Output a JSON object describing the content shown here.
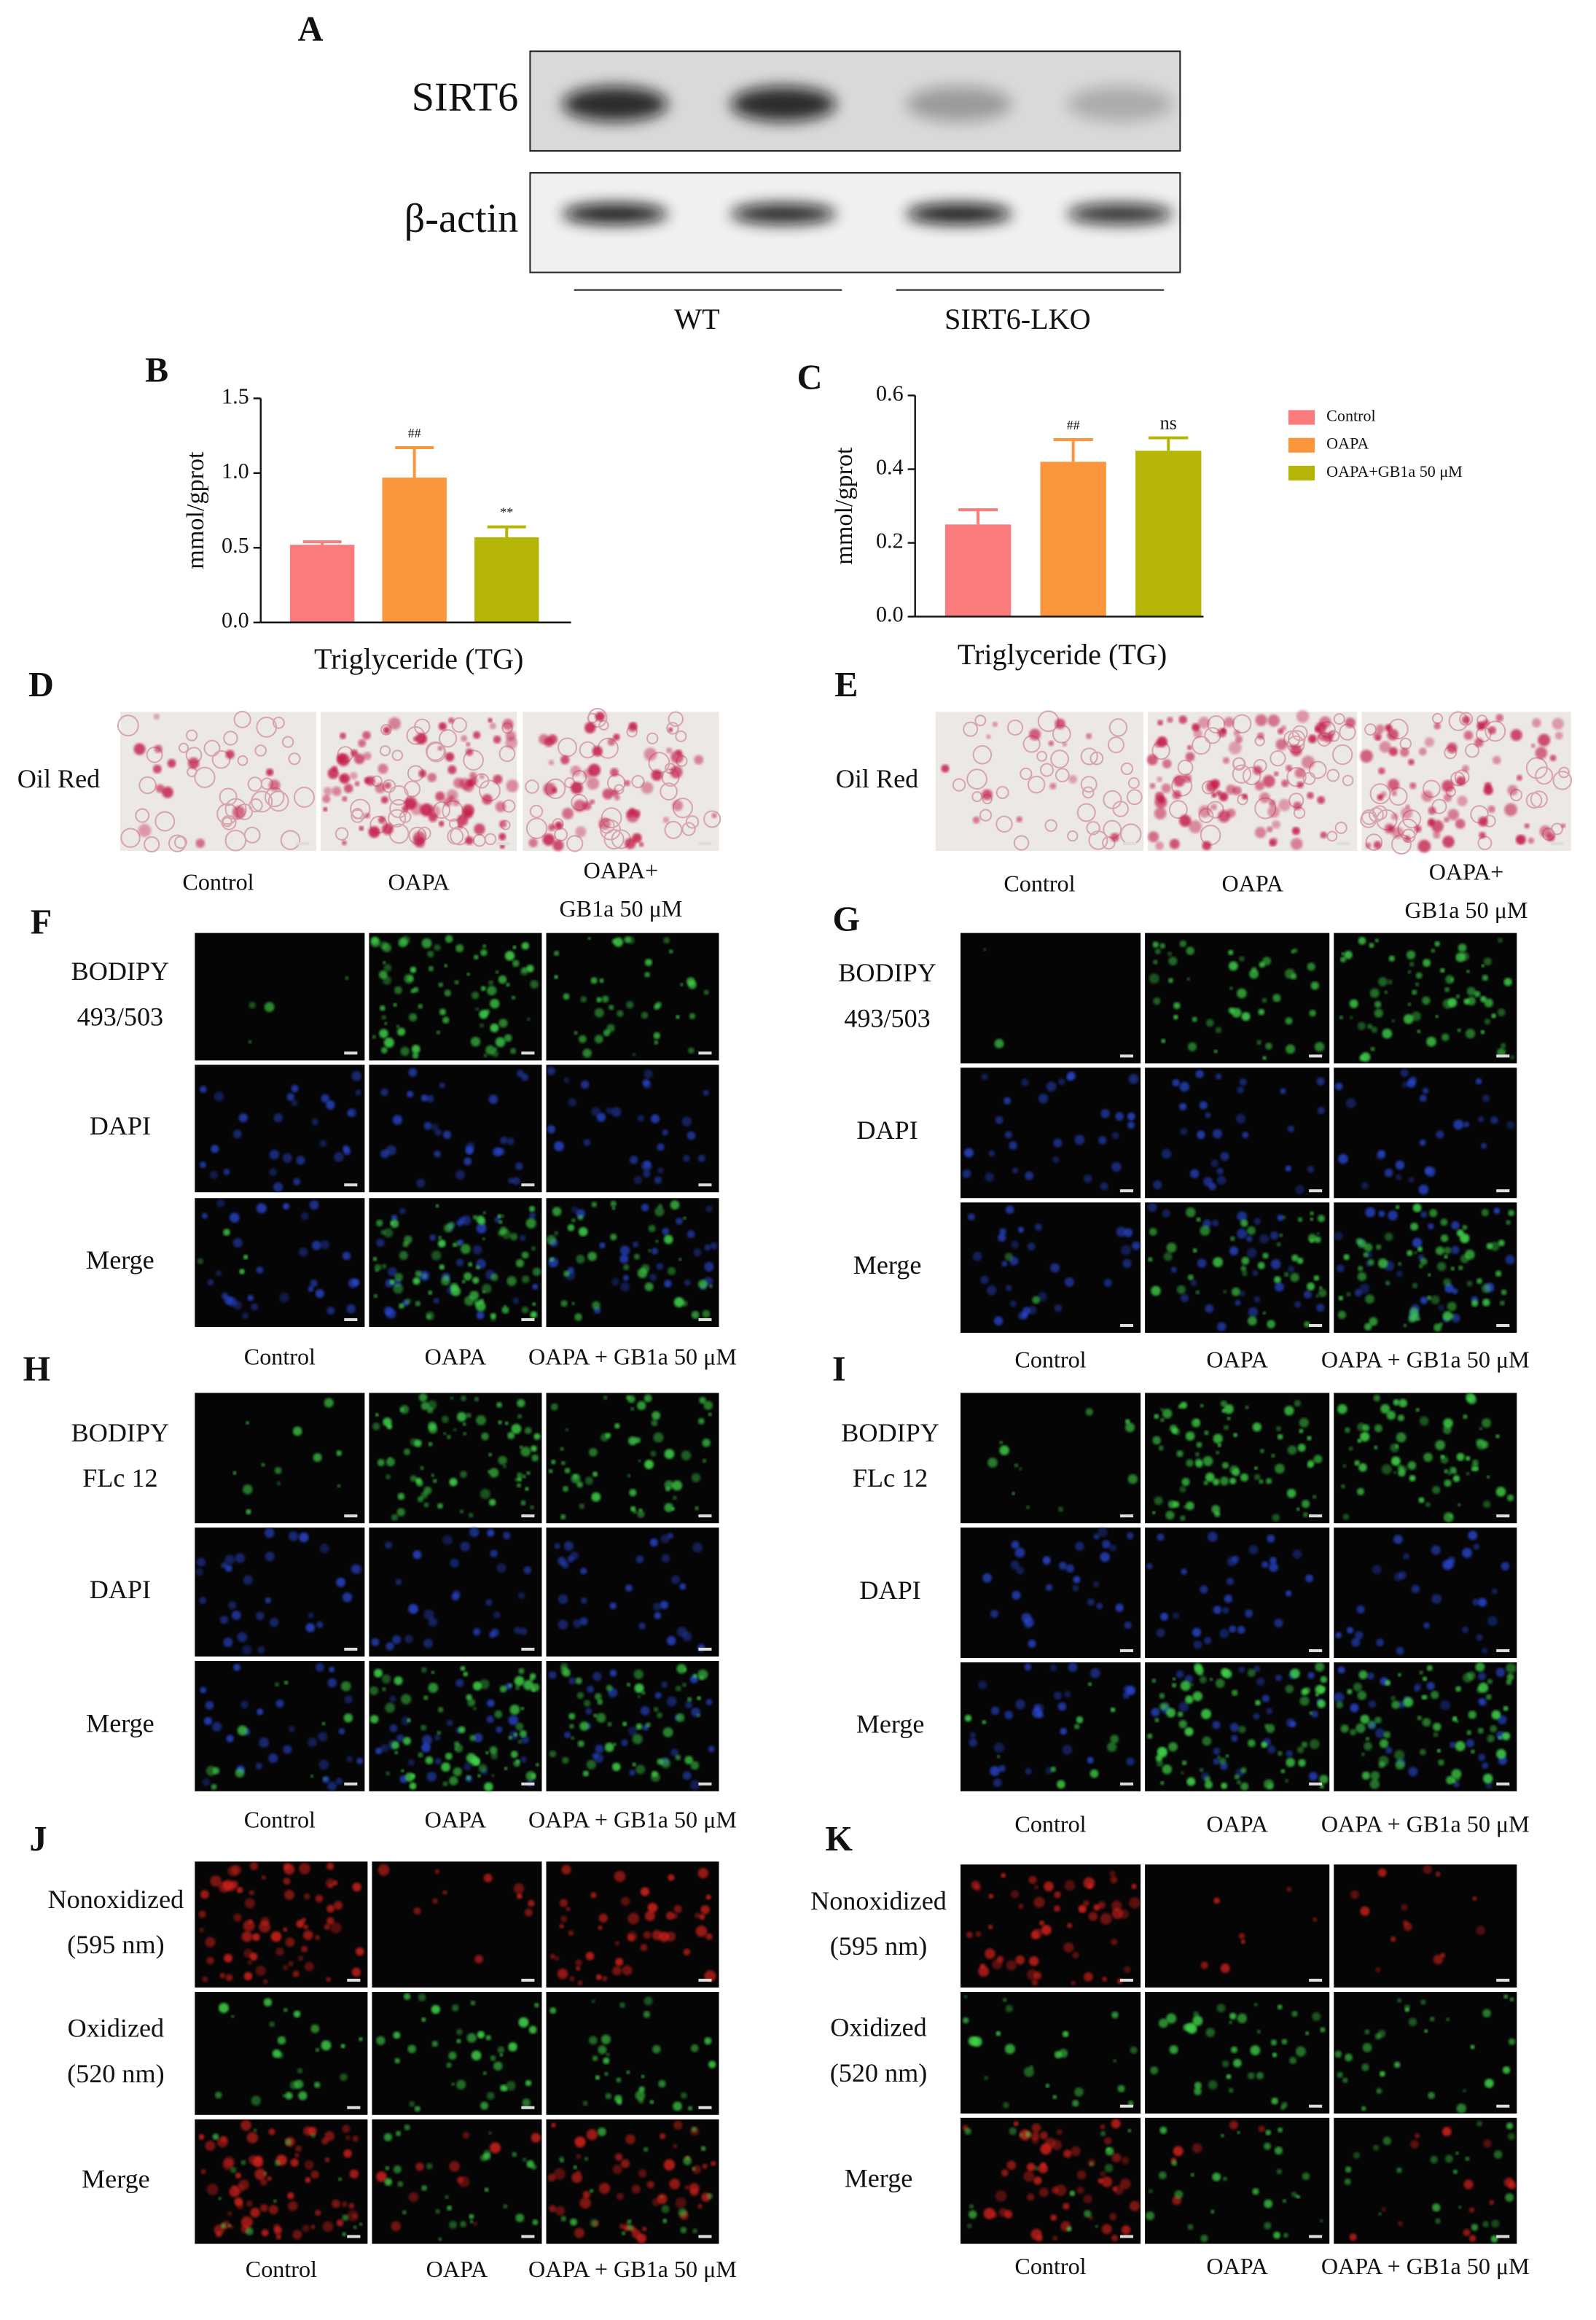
{
  "blot": {
    "letter": "A",
    "rows": [
      "SIRT6",
      "β-actin"
    ],
    "groups": [
      "WT",
      "SIRT6-LKO"
    ]
  },
  "chart_data": [
    {
      "type": "bar",
      "label": "B",
      "ylabel": "mmol/gprot",
      "xlabel": "Triglyceride (TG)",
      "values": [
        0.52,
        0.97,
        0.57
      ],
      "errors": [
        0.02,
        0.2,
        0.07
      ],
      "colors": [
        "#f97b7b",
        "#fb963c",
        "#b5b506"
      ],
      "significance": [
        null,
        "##",
        "**"
      ],
      "ylim": [
        0,
        1.5
      ],
      "yticks": [
        {
          "value": 0,
          "label": "0.0"
        },
        0.5,
        {
          "value": 1,
          "label": "1.0"
        },
        1.5
      ]
    },
    {
      "type": "bar",
      "label": "C",
      "ylabel": "mmol/gprot",
      "xlabel": "Triglyceride (TG)",
      "categories": [
        "Control",
        "OAPA",
        "OAPA+GB1a 50 μM"
      ],
      "values": [
        0.25,
        0.42,
        0.45
      ],
      "errors": [
        0.04,
        0.06,
        0.035
      ],
      "colors": [
        "#f97b7b",
        "#fb963c",
        "#b5b506"
      ],
      "significance": [
        null,
        "##",
        "ns"
      ],
      "ylim": [
        0,
        0.6
      ],
      "yticks": [
        {
          "value": 0,
          "label": "0.0"
        },
        0.2,
        0.4,
        0.6
      ],
      "legend": "right"
    }
  ],
  "image_panels": [
    {
      "letter": "D",
      "rows": [
        [
          "Oil Red"
        ]
      ],
      "columns": [
        [
          "Control"
        ],
        [
          "OAPA"
        ],
        [
          "OAPA+",
          "GB1a 50 μM"
        ]
      ]
    },
    {
      "letter": "E",
      "rows": [
        [
          "Oil Red"
        ]
      ],
      "columns": [
        [
          "Control"
        ],
        [
          "OAPA"
        ],
        [
          "OAPA+",
          "GB1a 50 μM"
        ]
      ]
    },
    {
      "letter": "F",
      "rows": [
        [
          "BODIPY",
          "493/503"
        ],
        [
          "DAPI"
        ],
        [
          "Merge"
        ]
      ],
      "columns": [
        [
          "Control"
        ],
        [
          "OAPA"
        ],
        [
          "OAPA + GB1a 50 μM"
        ]
      ]
    },
    {
      "letter": "G",
      "rows": [
        [
          "BODIPY",
          "493/503"
        ],
        [
          "DAPI"
        ],
        [
          "Merge"
        ]
      ],
      "columns": [
        [
          "Control"
        ],
        [
          "OAPA"
        ],
        [
          "OAPA + GB1a 50 μM"
        ]
      ]
    },
    {
      "letter": "H",
      "rows": [
        [
          "BODIPY",
          "FLc 12"
        ],
        [
          "DAPI"
        ],
        [
          "Merge"
        ]
      ],
      "columns": [
        [
          "Control"
        ],
        [
          "OAPA"
        ],
        [
          "OAPA + GB1a 50 μM"
        ]
      ]
    },
    {
      "letter": "I",
      "rows": [
        [
          "BODIPY",
          "FLc 12"
        ],
        [
          "DAPI"
        ],
        [
          "Merge"
        ]
      ],
      "columns": [
        [
          "Control"
        ],
        [
          "OAPA"
        ],
        [
          "OAPA + GB1a 50 μM"
        ]
      ]
    },
    {
      "letter": "J",
      "rows": [
        [
          "Nonoxidized",
          "(595 nm)"
        ],
        [
          "Oxidized",
          "(520 nm)"
        ],
        [
          "Merge"
        ]
      ],
      "columns": [
        [
          "Control"
        ],
        [
          "OAPA"
        ],
        [
          "OAPA + GB1a 50 μM"
        ]
      ]
    },
    {
      "letter": "K",
      "rows": [
        [
          "Nonoxidized",
          "(595 nm)"
        ],
        [
          "Oxidized",
          "(520 nm)"
        ],
        [
          "Merge"
        ]
      ],
      "columns": [
        [
          "Control"
        ],
        [
          "OAPA"
        ],
        [
          "OAPA + GB1a 50 μM"
        ]
      ]
    }
  ]
}
